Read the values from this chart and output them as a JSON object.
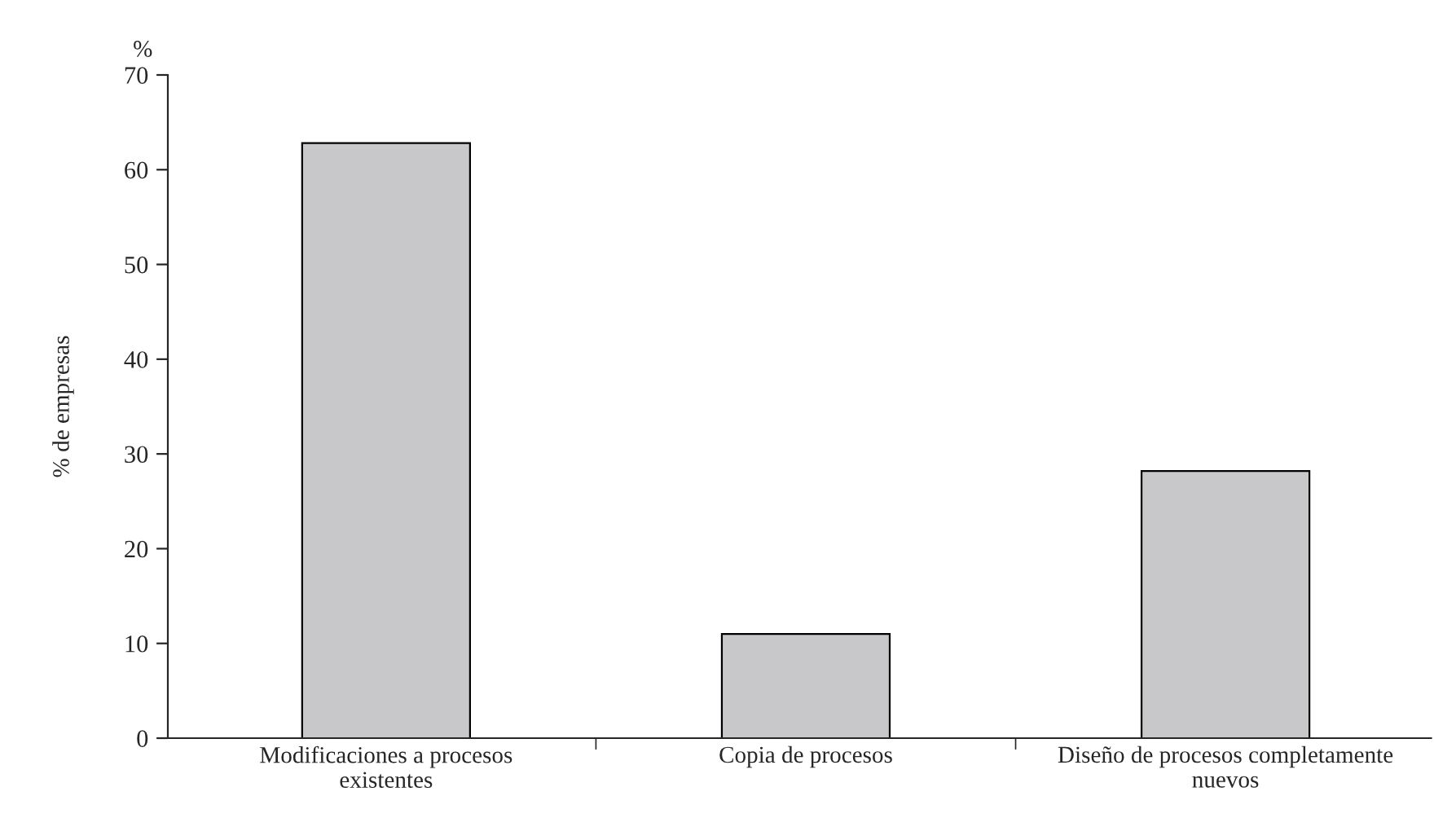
{
  "chart_data": {
    "type": "bar",
    "ylabel": "% de empresas",
    "annotations": [
      "%"
    ],
    "categories": [
      "Modificaciones a procesos\nexistentes",
      "Copia de procesos",
      "Diseño de procesos completamente\nnuevos"
    ],
    "values": [
      62.8,
      11,
      28.2
    ],
    "color": "#c8c8ca",
    "ylim": [
      0,
      70
    ],
    "yticks": [
      0,
      10,
      20,
      30,
      40,
      50,
      60,
      70
    ],
    "grid": false,
    "legend": false
  }
}
